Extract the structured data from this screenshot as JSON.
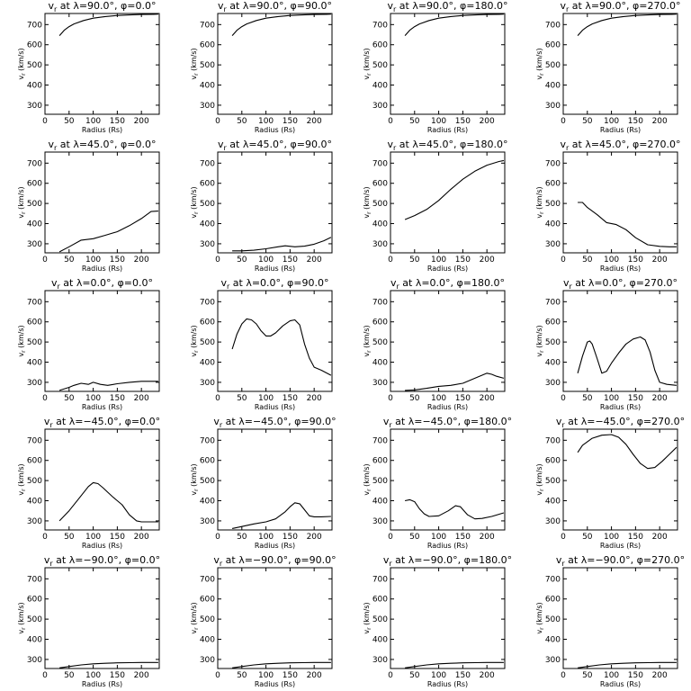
{
  "chart_data": {
    "type": "line",
    "layout": "5x4 grid of panels",
    "shared_axes": {
      "xlabel": "Radius (Rs)",
      "ylabel": "v_r (km/s)",
      "xlim": [
        0,
        237
      ],
      "ylim": [
        255,
        755
      ],
      "xticks": [
        0,
        50,
        100,
        150,
        200
      ],
      "yticks": [
        300,
        400,
        500,
        600,
        700
      ]
    },
    "panels": [
      {
        "title": "vr at λ=90.0°, φ=0.0°",
        "x": [
          30,
          40,
          50,
          60,
          80,
          100,
          125,
          150,
          175,
          200,
          225,
          235
        ],
        "y": [
          645,
          672,
          690,
          703,
          720,
          732,
          740,
          745,
          748,
          750,
          751,
          752
        ]
      },
      {
        "title": "vr at λ=90.0°, φ=90.0°",
        "x": [
          30,
          40,
          50,
          60,
          80,
          100,
          125,
          150,
          175,
          200,
          225,
          235
        ],
        "y": [
          645,
          672,
          690,
          703,
          720,
          732,
          740,
          745,
          748,
          750,
          751,
          752
        ]
      },
      {
        "title": "vr at λ=90.0°, φ=180.0°",
        "x": [
          30,
          40,
          50,
          60,
          80,
          100,
          125,
          150,
          175,
          200,
          225,
          235
        ],
        "y": [
          645,
          672,
          690,
          703,
          720,
          732,
          740,
          745,
          748,
          750,
          751,
          752
        ]
      },
      {
        "title": "vr at λ=90.0°, φ=270.0°",
        "x": [
          30,
          40,
          50,
          60,
          80,
          100,
          125,
          150,
          175,
          200,
          225,
          235
        ],
        "y": [
          645,
          672,
          690,
          703,
          720,
          732,
          740,
          745,
          748,
          750,
          751,
          752
        ]
      },
      {
        "title": "vr at λ=45.0°, φ=0.0°",
        "x": [
          30,
          50,
          75,
          100,
          125,
          150,
          175,
          200,
          220,
          235
        ],
        "y": [
          260,
          285,
          318,
          325,
          342,
          360,
          390,
          425,
          460,
          462
        ]
      },
      {
        "title": "vr at λ=45.0°, φ=90.0°",
        "x": [
          30,
          50,
          75,
          100,
          125,
          140,
          160,
          180,
          200,
          220,
          235
        ],
        "y": [
          265,
          265,
          268,
          275,
          285,
          290,
          285,
          288,
          298,
          315,
          332
        ]
      },
      {
        "title": "vr at λ=45.0°, φ=180.0°",
        "x": [
          30,
          50,
          75,
          100,
          125,
          150,
          175,
          200,
          225,
          235
        ],
        "y": [
          420,
          440,
          470,
          515,
          570,
          620,
          660,
          690,
          708,
          713
        ]
      },
      {
        "title": "vr at λ=45.0°, φ=270.0°",
        "x": [
          30,
          40,
          50,
          70,
          90,
          110,
          130,
          150,
          175,
          200,
          220,
          235
        ],
        "y": [
          505,
          505,
          480,
          445,
          405,
          395,
          370,
          330,
          295,
          287,
          285,
          285
        ]
      },
      {
        "title": "vr at λ=0.0°, φ=0.0°",
        "x": [
          30,
          50,
          60,
          75,
          90,
          100,
          115,
          130,
          150,
          175,
          200,
          220,
          235
        ],
        "y": [
          260,
          275,
          285,
          295,
          290,
          300,
          290,
          285,
          293,
          300,
          305,
          305,
          305
        ]
      },
      {
        "title": "vr at λ=0.0°, φ=90.0°",
        "x": [
          30,
          40,
          50,
          60,
          70,
          80,
          90,
          100,
          110,
          120,
          135,
          150,
          160,
          170,
          180,
          190,
          200,
          215,
          235
        ],
        "y": [
          465,
          540,
          590,
          615,
          610,
          590,
          555,
          530,
          530,
          545,
          580,
          605,
          610,
          585,
          490,
          420,
          375,
          360,
          335
        ]
      },
      {
        "title": "vr at λ=0.0°, φ=180.0°",
        "x": [
          30,
          50,
          75,
          100,
          125,
          150,
          175,
          200,
          210,
          220,
          235
        ],
        "y": [
          260,
          262,
          270,
          280,
          285,
          295,
          320,
          345,
          340,
          330,
          320
        ]
      },
      {
        "title": "vr at λ=0.0°, φ=270.0°",
        "x": [
          30,
          40,
          50,
          55,
          60,
          70,
          80,
          90,
          100,
          115,
          130,
          145,
          160,
          170,
          180,
          190,
          200,
          215,
          235
        ],
        "y": [
          345,
          430,
          500,
          505,
          490,
          420,
          345,
          355,
          395,
          445,
          490,
          515,
          525,
          510,
          450,
          360,
          300,
          290,
          285
        ]
      },
      {
        "title": "vr at λ=−45.0°, φ=0.0°",
        "x": [
          30,
          50,
          70,
          90,
          100,
          110,
          120,
          140,
          160,
          175,
          190,
          200,
          215,
          235
        ],
        "y": [
          300,
          350,
          410,
          470,
          490,
          485,
          465,
          420,
          380,
          330,
          300,
          295,
          295,
          295
        ]
      },
      {
        "title": "vr at λ=−45.0°, φ=90.0°",
        "x": [
          30,
          50,
          75,
          100,
          120,
          140,
          150,
          160,
          170,
          180,
          190,
          200,
          215,
          235
        ],
        "y": [
          262,
          272,
          285,
          295,
          310,
          345,
          370,
          390,
          385,
          355,
          325,
          320,
          320,
          322
        ]
      },
      {
        "title": "vr at λ=−45.0°, φ=180.0°",
        "x": [
          30,
          40,
          50,
          60,
          70,
          80,
          100,
          120,
          135,
          145,
          160,
          175,
          190,
          210,
          235
        ],
        "y": [
          400,
          405,
          395,
          360,
          335,
          322,
          325,
          350,
          375,
          370,
          330,
          310,
          312,
          322,
          340
        ]
      },
      {
        "title": "vr at λ=−45.0°, φ=270.0°",
        "x": [
          30,
          40,
          60,
          80,
          100,
          115,
          130,
          145,
          160,
          175,
          190,
          205,
          220,
          235
        ],
        "y": [
          640,
          675,
          710,
          725,
          728,
          715,
          680,
          630,
          585,
          560,
          565,
          595,
          630,
          665
        ]
      },
      {
        "title": "vr at λ=−90.0°, φ=0.0°",
        "x": [
          30,
          50,
          75,
          100,
          125,
          150,
          175,
          200,
          225,
          235
        ],
        "y": [
          258,
          265,
          273,
          278,
          281,
          283,
          284,
          285,
          285,
          285
        ]
      },
      {
        "title": "vr at λ=−90.0°, φ=90.0°",
        "x": [
          30,
          50,
          75,
          100,
          125,
          150,
          175,
          200,
          225,
          235
        ],
        "y": [
          258,
          265,
          273,
          278,
          281,
          283,
          284,
          285,
          285,
          285
        ]
      },
      {
        "title": "vr at λ=−90.0°, φ=180.0°",
        "x": [
          30,
          50,
          75,
          100,
          125,
          150,
          175,
          200,
          225,
          235
        ],
        "y": [
          258,
          265,
          273,
          278,
          281,
          283,
          284,
          285,
          285,
          285
        ]
      },
      {
        "title": "vr at λ=−90.0°, φ=270.0°",
        "x": [
          30,
          50,
          75,
          100,
          125,
          150,
          175,
          200,
          225,
          235
        ],
        "y": [
          258,
          265,
          273,
          278,
          281,
          283,
          284,
          285,
          285,
          285
        ]
      }
    ]
  }
}
